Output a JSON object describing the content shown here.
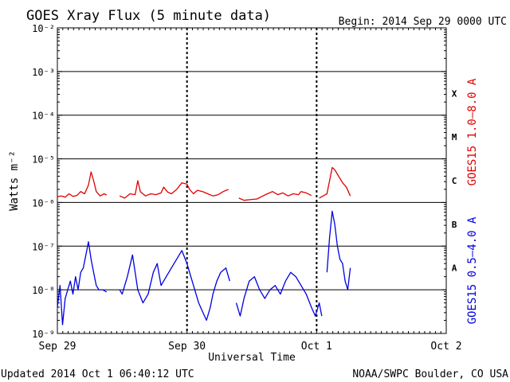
{
  "header": {
    "title": "GOES Xray Flux (5 minute data)",
    "begin": "Begin:  2014 Sep 29 0000 UTC"
  },
  "footer": {
    "updated": "Updated 2014 Oct  1 06:40:12 UTC",
    "credit": "NOAA/SWPC Boulder, CO USA"
  },
  "chart_data": {
    "type": "line",
    "title": "GOES Xray Flux (5 minute data)",
    "xlabel": "Universal Time",
    "ylabel": "Watts m⁻²",
    "x_unit": "days since 2014 Sep 29 0000 UTC",
    "xlim": [
      0,
      3
    ],
    "x_ticks": [
      {
        "x": 0,
        "label": "Sep 29"
      },
      {
        "x": 1,
        "label": "Sep 30"
      },
      {
        "x": 2,
        "label": "Oct 1"
      },
      {
        "x": 3,
        "label": "Oct 2"
      }
    ],
    "yscale": "log",
    "ylim_exp": [
      -9,
      -2
    ],
    "y_ticks": [
      {
        "exp": -2,
        "label": "10⁻²"
      },
      {
        "exp": -3,
        "label": "10⁻³"
      },
      {
        "exp": -4,
        "label": "10⁻⁴"
      },
      {
        "exp": -5,
        "label": "10⁻⁵"
      },
      {
        "exp": -6,
        "label": "10⁻⁶"
      },
      {
        "exp": -7,
        "label": "10⁻⁷"
      },
      {
        "exp": -8,
        "label": "10⁻⁸"
      },
      {
        "exp": -9,
        "label": "10⁻⁹"
      }
    ],
    "flare_classes": [
      {
        "label": "X",
        "exp": -3.5
      },
      {
        "label": "M",
        "exp": -4.5
      },
      {
        "label": "C",
        "exp": -5.5
      },
      {
        "label": "B",
        "exp": -6.5
      },
      {
        "label": "A",
        "exp": -7.5
      }
    ],
    "grid": true,
    "series": [
      {
        "name": "GOES15 1.0–8.0 A",
        "color": "#e00000",
        "segments": [
          [
            [
              0.0,
              -5.87
            ],
            [
              0.03,
              -5.85
            ],
            [
              0.06,
              -5.88
            ],
            [
              0.09,
              -5.8
            ],
            [
              0.12,
              -5.86
            ],
            [
              0.15,
              -5.84
            ],
            [
              0.18,
              -5.75
            ],
            [
              0.21,
              -5.8
            ],
            [
              0.24,
              -5.6
            ],
            [
              0.26,
              -5.3
            ],
            [
              0.28,
              -5.5
            ],
            [
              0.3,
              -5.75
            ],
            [
              0.33,
              -5.85
            ],
            [
              0.36,
              -5.8
            ],
            [
              0.38,
              -5.83
            ]
          ],
          [
            [
              0.48,
              -5.85
            ],
            [
              0.52,
              -5.9
            ],
            [
              0.56,
              -5.8
            ],
            [
              0.6,
              -5.82
            ],
            [
              0.62,
              -5.5
            ],
            [
              0.64,
              -5.75
            ],
            [
              0.68,
              -5.85
            ],
            [
              0.72,
              -5.8
            ],
            [
              0.76,
              -5.82
            ],
            [
              0.8,
              -5.78
            ],
            [
              0.82,
              -5.65
            ],
            [
              0.85,
              -5.76
            ],
            [
              0.88,
              -5.8
            ],
            [
              0.92,
              -5.7
            ],
            [
              0.96,
              -5.55
            ],
            [
              1.0,
              -5.58
            ],
            [
              1.02,
              -5.7
            ],
            [
              1.05,
              -5.8
            ],
            [
              1.08,
              -5.72
            ],
            [
              1.12,
              -5.75
            ],
            [
              1.16,
              -5.8
            ],
            [
              1.2,
              -5.85
            ],
            [
              1.24,
              -5.82
            ],
            [
              1.28,
              -5.75
            ],
            [
              1.32,
              -5.7
            ]
          ],
          [
            [
              1.4,
              -5.9
            ],
            [
              1.44,
              -5.95
            ],
            [
              1.5,
              -5.93
            ],
            [
              1.54,
              -5.92
            ],
            [
              1.58,
              -5.86
            ],
            [
              1.62,
              -5.8
            ],
            [
              1.66,
              -5.75
            ],
            [
              1.7,
              -5.82
            ],
            [
              1.74,
              -5.78
            ],
            [
              1.78,
              -5.85
            ],
            [
              1.82,
              -5.8
            ],
            [
              1.86,
              -5.82
            ],
            [
              1.88,
              -5.75
            ],
            [
              1.92,
              -5.78
            ],
            [
              1.96,
              -5.84
            ]
          ],
          [
            [
              2.02,
              -5.9
            ],
            [
              2.05,
              -5.85
            ],
            [
              2.08,
              -5.8
            ],
            [
              2.1,
              -5.5
            ],
            [
              2.12,
              -5.2
            ],
            [
              2.14,
              -5.25
            ],
            [
              2.17,
              -5.4
            ],
            [
              2.2,
              -5.55
            ],
            [
              2.23,
              -5.65
            ],
            [
              2.26,
              -5.85
            ]
          ]
        ]
      },
      {
        "name": "GOES15 0.5–4.0 A",
        "color": "#0000e0",
        "segments": [
          [
            [
              0.0,
              -8.4
            ],
            [
              0.02,
              -7.9
            ],
            [
              0.04,
              -8.8
            ],
            [
              0.06,
              -8.2
            ],
            [
              0.08,
              -8.0
            ],
            [
              0.1,
              -7.8
            ],
            [
              0.12,
              -8.1
            ],
            [
              0.14,
              -7.7
            ],
            [
              0.16,
              -8.0
            ],
            [
              0.18,
              -7.6
            ],
            [
              0.2,
              -7.5
            ],
            [
              0.22,
              -7.2
            ],
            [
              0.24,
              -6.9
            ],
            [
              0.26,
              -7.3
            ],
            [
              0.28,
              -7.6
            ],
            [
              0.3,
              -7.9
            ],
            [
              0.32,
              -8.0
            ],
            [
              0.35,
              -8.0
            ],
            [
              0.38,
              -8.05
            ]
          ],
          [
            [
              0.48,
              -8.0
            ],
            [
              0.5,
              -8.1
            ],
            [
              0.54,
              -7.7
            ],
            [
              0.58,
              -7.2
            ],
            [
              0.62,
              -8.0
            ],
            [
              0.66,
              -8.3
            ],
            [
              0.7,
              -8.1
            ],
            [
              0.74,
              -7.6
            ],
            [
              0.77,
              -7.4
            ],
            [
              0.8,
              -7.9
            ],
            [
              0.84,
              -7.7
            ],
            [
              0.88,
              -7.5
            ],
            [
              0.92,
              -7.3
            ],
            [
              0.96,
              -7.1
            ],
            [
              1.0,
              -7.4
            ],
            [
              1.03,
              -7.7
            ],
            [
              1.06,
              -8.0
            ],
            [
              1.09,
              -8.3
            ],
            [
              1.12,
              -8.5
            ],
            [
              1.15,
              -8.7
            ],
            [
              1.18,
              -8.4
            ],
            [
              1.2,
              -8.1
            ],
            [
              1.23,
              -7.8
            ],
            [
              1.26,
              -7.6
            ],
            [
              1.3,
              -7.5
            ],
            [
              1.33,
              -7.8
            ]
          ],
          [
            [
              1.38,
              -8.3
            ],
            [
              1.41,
              -8.6
            ],
            [
              1.44,
              -8.2
            ],
            [
              1.48,
              -7.8
            ],
            [
              1.52,
              -7.7
            ],
            [
              1.56,
              -8.0
            ],
            [
              1.6,
              -8.2
            ],
            [
              1.64,
              -8.0
            ],
            [
              1.68,
              -7.9
            ],
            [
              1.72,
              -8.1
            ],
            [
              1.76,
              -7.8
            ],
            [
              1.8,
              -7.6
            ],
            [
              1.84,
              -7.7
            ],
            [
              1.88,
              -7.9
            ],
            [
              1.92,
              -8.1
            ],
            [
              1.96,
              -8.4
            ],
            [
              1.99,
              -8.6
            ],
            [
              2.02,
              -8.3
            ],
            [
              2.04,
              -8.6
            ]
          ],
          [
            [
              2.08,
              -7.6
            ],
            [
              2.1,
              -6.8
            ],
            [
              2.12,
              -6.2
            ],
            [
              2.14,
              -6.5
            ],
            [
              2.16,
              -7.0
            ],
            [
              2.18,
              -7.3
            ],
            [
              2.2,
              -7.4
            ],
            [
              2.22,
              -7.8
            ],
            [
              2.24,
              -8.0
            ],
            [
              2.26,
              -7.5
            ]
          ]
        ]
      }
    ]
  }
}
